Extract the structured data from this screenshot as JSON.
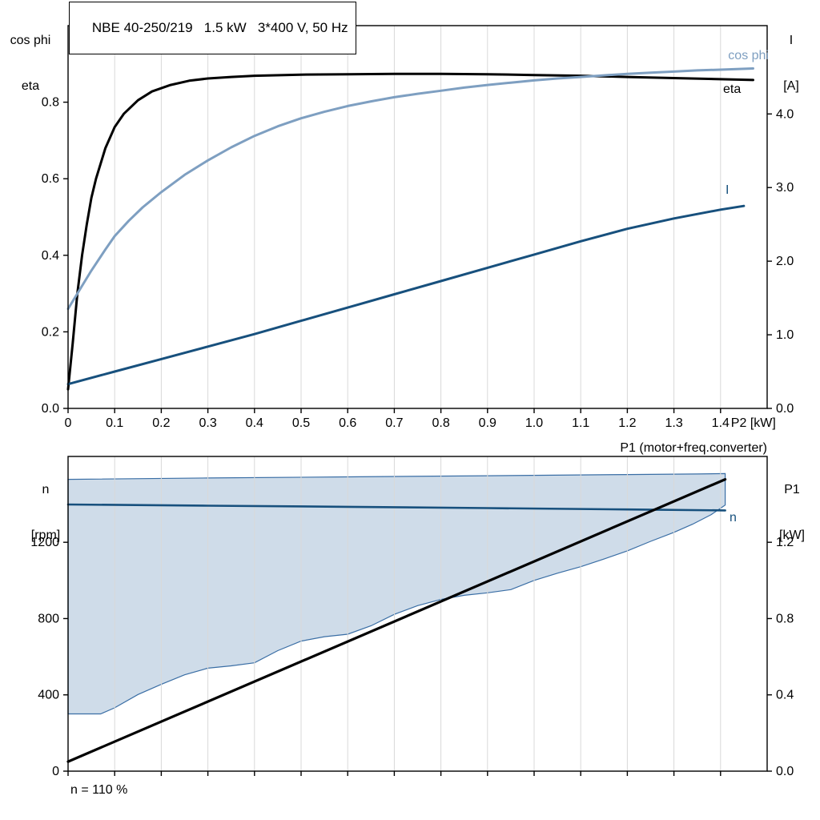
{
  "header": {
    "title": "NBE 40-250/219   1.5 kW   3*400 V, 50 Hz"
  },
  "axis_titles": {
    "top_left_line1": "cos phi",
    "top_left_line2": "eta",
    "top_right_line1": "I",
    "top_right_line2": "[A]",
    "bottom_left_line1": "n",
    "bottom_left_line2": "[rpm]",
    "bottom_right_line1": "P1",
    "bottom_right_line2": "[kW]"
  },
  "labels": {
    "cos_phi": "cos phi",
    "eta": "eta",
    "current": "I",
    "speed": "n",
    "bottom_chart_title": "P1 (motor+freq.converter)"
  },
  "footer": {
    "note": "n = 110 %"
  },
  "colors": {
    "eta": "#000000",
    "cos_phi": "#7e9fc1",
    "current": "#17507d",
    "speed": "#17507d",
    "p1": "#000000",
    "envelope_fill": "#cfdce9",
    "envelope_stroke": "#3a6ea5",
    "grid": "#d9d9d9"
  },
  "chart_data": [
    {
      "name": "top",
      "type": "line",
      "x_axis": {
        "label": "P2 [kW]",
        "unit_label": "P2 [kW]",
        "min": 0,
        "max": 1.5,
        "ticks": {
          "values": [
            0,
            0.1,
            0.2,
            0.3,
            0.4,
            0.5,
            0.6,
            0.7,
            0.8,
            0.9,
            1.0,
            1.1,
            1.2,
            1.3,
            1.4
          ],
          "labels": [
            "0",
            "0.1",
            "0.2",
            "0.3",
            "0.4",
            "0.5",
            "0.6",
            "0.7",
            "0.8",
            "0.9",
            "1.0",
            "1.1",
            "1.2",
            "1.3",
            "1.4"
          ]
        }
      },
      "left_axis": {
        "label": "cos phi / eta",
        "min": 0,
        "max": 1.0,
        "ticks": {
          "values": [
            0,
            0.2,
            0.4,
            0.6,
            0.8
          ],
          "labels": [
            "0.0",
            "0.2",
            "0.4",
            "0.6",
            "0.8"
          ]
        }
      },
      "right_axis": {
        "label": "I [A]",
        "min": 0,
        "max": 5.2,
        "ticks": {
          "values": [
            0,
            1,
            2,
            3,
            4
          ],
          "labels": [
            "0.0",
            "1.0",
            "2.0",
            "3.0",
            "4.0"
          ]
        }
      },
      "series": [
        {
          "name": "eta",
          "type": "line",
          "axis": "left",
          "color": "#000000",
          "width": 3,
          "points": [
            [
              0,
              0.05
            ],
            [
              0.01,
              0.17
            ],
            [
              0.02,
              0.3
            ],
            [
              0.03,
              0.4
            ],
            [
              0.04,
              0.48
            ],
            [
              0.05,
              0.55
            ],
            [
              0.06,
              0.6
            ],
            [
              0.08,
              0.68
            ],
            [
              0.1,
              0.735
            ],
            [
              0.12,
              0.77
            ],
            [
              0.15,
              0.805
            ],
            [
              0.18,
              0.828
            ],
            [
              0.22,
              0.845
            ],
            [
              0.26,
              0.856
            ],
            [
              0.3,
              0.862
            ],
            [
              0.35,
              0.866
            ],
            [
              0.4,
              0.869
            ],
            [
              0.5,
              0.872
            ],
            [
              0.6,
              0.873
            ],
            [
              0.7,
              0.874
            ],
            [
              0.8,
              0.874
            ],
            [
              0.9,
              0.873
            ],
            [
              1.0,
              0.871
            ],
            [
              1.1,
              0.869
            ],
            [
              1.2,
              0.866
            ],
            [
              1.3,
              0.863
            ],
            [
              1.4,
              0.86
            ],
            [
              1.47,
              0.858
            ]
          ]
        },
        {
          "name": "cos phi",
          "type": "line",
          "axis": "left",
          "color": "#7e9fc1",
          "width": 3,
          "points": [
            [
              0,
              0.26
            ],
            [
              0.02,
              0.3
            ],
            [
              0.05,
              0.36
            ],
            [
              0.08,
              0.415
            ],
            [
              0.1,
              0.45
            ],
            [
              0.13,
              0.49
            ],
            [
              0.16,
              0.525
            ],
            [
              0.2,
              0.565
            ],
            [
              0.25,
              0.61
            ],
            [
              0.3,
              0.648
            ],
            [
              0.35,
              0.682
            ],
            [
              0.4,
              0.712
            ],
            [
              0.45,
              0.737
            ],
            [
              0.5,
              0.758
            ],
            [
              0.55,
              0.775
            ],
            [
              0.6,
              0.79
            ],
            [
              0.65,
              0.802
            ],
            [
              0.7,
              0.813
            ],
            [
              0.75,
              0.822
            ],
            [
              0.8,
              0.83
            ],
            [
              0.85,
              0.838
            ],
            [
              0.9,
              0.845
            ],
            [
              0.95,
              0.851
            ],
            [
              1.0,
              0.857
            ],
            [
              1.05,
              0.862
            ],
            [
              1.1,
              0.866
            ],
            [
              1.15,
              0.87
            ],
            [
              1.2,
              0.874
            ],
            [
              1.25,
              0.877
            ],
            [
              1.3,
              0.88
            ],
            [
              1.35,
              0.883
            ],
            [
              1.4,
              0.885
            ],
            [
              1.47,
              0.888
            ]
          ]
        },
        {
          "name": "I",
          "type": "line",
          "axis": "right",
          "color": "#17507d",
          "width": 3,
          "points": [
            [
              0,
              0.33
            ],
            [
              0.1,
              0.5
            ],
            [
              0.2,
              0.67
            ],
            [
              0.3,
              0.84
            ],
            [
              0.4,
              1.01
            ],
            [
              0.5,
              1.19
            ],
            [
              0.6,
              1.37
            ],
            [
              0.7,
              1.55
            ],
            [
              0.8,
              1.73
            ],
            [
              0.9,
              1.91
            ],
            [
              1.0,
              2.09
            ],
            [
              1.1,
              2.27
            ],
            [
              1.2,
              2.44
            ],
            [
              1.3,
              2.58
            ],
            [
              1.4,
              2.7
            ],
            [
              1.45,
              2.75
            ]
          ]
        }
      ]
    },
    {
      "name": "bottom",
      "type": "line",
      "title": "P1 (motor+freq.converter)",
      "x_axis": {
        "label": "",
        "min": 0,
        "max": 1.5,
        "ticks": {
          "values": [
            0,
            0.1,
            0.2,
            0.3,
            0.4,
            0.5,
            0.6,
            0.7,
            0.8,
            0.9,
            1.0,
            1.1,
            1.2,
            1.3,
            1.4
          ],
          "labels": []
        }
      },
      "left_axis": {
        "label": "n [rpm]",
        "min": 0,
        "max": 1650,
        "ticks": {
          "values": [
            0,
            400,
            800,
            1200
          ],
          "labels": [
            "0",
            "400",
            "800",
            "1200"
          ]
        }
      },
      "right_axis": {
        "label": "P1 [kW]",
        "min": 0,
        "max": 1.65,
        "ticks": {
          "values": [
            0,
            0.4,
            0.8,
            1.2
          ],
          "labels": [
            "0.0",
            "0.4",
            "0.8",
            "1.2"
          ]
        }
      },
      "series": [
        {
          "name": "speed-envelope",
          "type": "area",
          "axis": "left",
          "color": "#3a6ea5",
          "fill": "#cfdce9",
          "width": 1.2,
          "points": [
            [
              0,
              1530
            ],
            [
              0.3,
              1537
            ],
            [
              0.6,
              1543
            ],
            [
              0.9,
              1549
            ],
            [
              1.2,
              1555
            ],
            [
              1.35,
              1558
            ],
            [
              1.41,
              1560
            ],
            [
              1.41,
              1395
            ],
            [
              1.38,
              1345
            ],
            [
              1.34,
              1295
            ],
            [
              1.3,
              1252
            ],
            [
              1.25,
              1205
            ],
            [
              1.2,
              1155
            ],
            [
              1.15,
              1112
            ],
            [
              1.1,
              1072
            ],
            [
              1.05,
              1038
            ],
            [
              1.0,
              1000
            ],
            [
              0.95,
              952
            ],
            [
              0.9,
              935
            ],
            [
              0.85,
              922
            ],
            [
              0.8,
              900
            ],
            [
              0.75,
              868
            ],
            [
              0.7,
              822
            ],
            [
              0.65,
              762
            ],
            [
              0.6,
              718
            ],
            [
              0.55,
              705
            ],
            [
              0.5,
              682
            ],
            [
              0.45,
              632
            ],
            [
              0.4,
              568
            ],
            [
              0.35,
              552
            ],
            [
              0.3,
              540
            ],
            [
              0.25,
              505
            ],
            [
              0.2,
              455
            ],
            [
              0.15,
              402
            ],
            [
              0.1,
              332
            ],
            [
              0.07,
              300
            ],
            [
              0,
              300
            ]
          ]
        },
        {
          "name": "n",
          "type": "line",
          "axis": "left",
          "color": "#17507d",
          "width": 2.6,
          "points": [
            [
              0,
              1398
            ],
            [
              0.3,
              1392
            ],
            [
              0.6,
              1386
            ],
            [
              0.9,
              1379
            ],
            [
              1.2,
              1372
            ],
            [
              1.41,
              1367
            ]
          ]
        },
        {
          "name": "P1",
          "type": "line",
          "axis": "right",
          "color": "#000000",
          "width": 3.2,
          "points": [
            [
              0,
              0.05
            ],
            [
              1.41,
              1.53
            ]
          ]
        }
      ]
    }
  ]
}
